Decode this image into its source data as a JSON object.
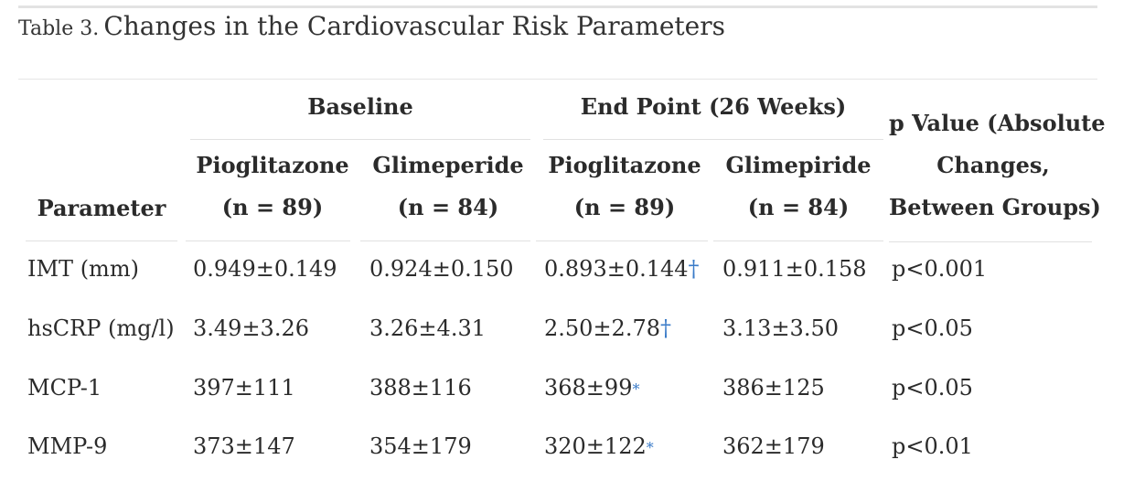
{
  "caption": {
    "label": "Table 3.",
    "title": "Changes in the Cardiovascular Risk Parameters"
  },
  "headers": {
    "group_baseline": "Baseline",
    "group_endpoint": "End Point (26 Weeks)",
    "parameter": "Parameter",
    "baseline_pio": [
      "Pioglitazone",
      "(n = 89)"
    ],
    "baseline_gli": [
      "Glimeperide",
      "(n = 84)"
    ],
    "end_pio": [
      "Pioglitazone",
      "(n = 89)"
    ],
    "end_gli": [
      "Glimepiride",
      "(n = 84)"
    ],
    "pvalue": [
      "p Value (Absolute",
      "Changes,",
      "Between Groups)"
    ]
  },
  "rows": [
    {
      "parameter": "IMT (mm)",
      "baseline_pio": "0.949±0.149",
      "baseline_gli": "0.924±0.150",
      "end_pio": "0.893±0.144",
      "end_pio_mark": "†",
      "end_gli": "0.911±0.158",
      "p": "p<0.001"
    },
    {
      "parameter": "hsCRP (mg/l)",
      "baseline_pio": "3.49±3.26",
      "baseline_gli": "3.26±4.31",
      "end_pio": "2.50±2.78",
      "end_pio_mark": "†",
      "end_gli": "3.13±3.50",
      "p": "p<0.05"
    },
    {
      "parameter": "MCP-1",
      "baseline_pio": "397±111",
      "baseline_gli": "388±116",
      "end_pio": "368±99",
      "end_pio_mark": "*",
      "end_gli": "386±125",
      "p": "p<0.05"
    },
    {
      "parameter": "MMP-9",
      "baseline_pio": "373±147",
      "baseline_gli": "354±179",
      "end_pio": "320±122",
      "end_pio_mark": "*",
      "end_gli": "362±179",
      "p": "p<0.01"
    }
  ]
}
